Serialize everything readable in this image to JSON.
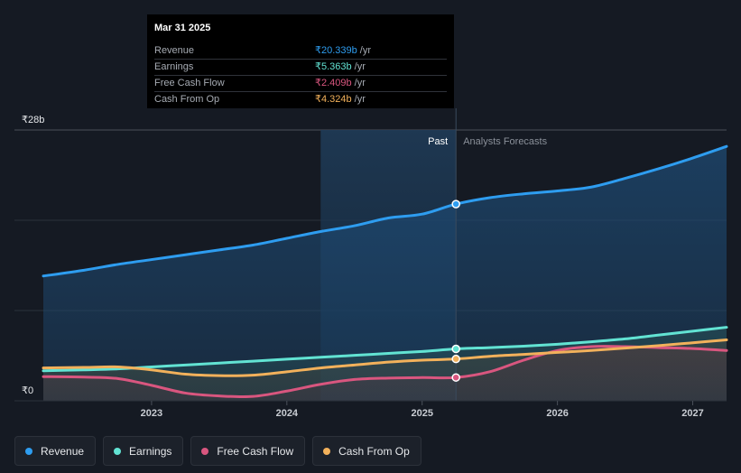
{
  "tooltip": {
    "date": "Mar 31 2025",
    "rows": [
      {
        "label": "Revenue",
        "value": "₹20.339b",
        "unit": "/yr",
        "color": "#2e9df0"
      },
      {
        "label": "Earnings",
        "value": "₹5.363b",
        "unit": "/yr",
        "color": "#62e3d3"
      },
      {
        "label": "Free Cash Flow",
        "value": "₹2.409b",
        "unit": "/yr",
        "color": "#d9567f"
      },
      {
        "label": "Cash From Op",
        "value": "₹4.324b",
        "unit": "/yr",
        "color": "#f2b15b"
      }
    ]
  },
  "chart_data": {
    "type": "line",
    "title": "",
    "ylabel": "",
    "xlabel": "",
    "y_unit_labels": {
      "top": "₹28b",
      "bottom": "₹0"
    },
    "ylim": [
      0,
      28
    ],
    "xlim": [
      2022.2,
      2027.25
    ],
    "x_ticks": [
      2023,
      2024,
      2025,
      2026,
      2027
    ],
    "x_tick_labels": [
      "2023",
      "2024",
      "2025",
      "2026",
      "2027"
    ],
    "past_label": "Past",
    "forecast_label": "Analysts Forecasts",
    "divider_x": 2025.25,
    "highlight_start_x": 2024.25,
    "series": [
      {
        "name": "Revenue",
        "color": "#2e9df0",
        "points": [
          [
            2022.2,
            12.9
          ],
          [
            2022.5,
            13.5
          ],
          [
            2022.75,
            14.1
          ],
          [
            2023.0,
            14.6
          ],
          [
            2023.25,
            15.1
          ],
          [
            2023.5,
            15.6
          ],
          [
            2023.75,
            16.1
          ],
          [
            2024.0,
            16.8
          ],
          [
            2024.25,
            17.5
          ],
          [
            2024.5,
            18.1
          ],
          [
            2024.75,
            18.9
          ],
          [
            2025.0,
            19.3
          ],
          [
            2025.25,
            20.339
          ],
          [
            2025.5,
            21.0
          ],
          [
            2025.75,
            21.4
          ],
          [
            2026.0,
            21.7
          ],
          [
            2026.25,
            22.1
          ],
          [
            2026.5,
            23.0
          ],
          [
            2026.75,
            24.0
          ],
          [
            2027.0,
            25.1
          ],
          [
            2027.25,
            26.3
          ]
        ]
      },
      {
        "name": "Earnings",
        "color": "#62e3d3",
        "points": [
          [
            2022.2,
            3.1
          ],
          [
            2022.5,
            3.2
          ],
          [
            2022.75,
            3.3
          ],
          [
            2023.0,
            3.5
          ],
          [
            2023.25,
            3.7
          ],
          [
            2023.5,
            3.9
          ],
          [
            2023.75,
            4.1
          ],
          [
            2024.0,
            4.3
          ],
          [
            2024.25,
            4.5
          ],
          [
            2024.5,
            4.7
          ],
          [
            2024.75,
            4.9
          ],
          [
            2025.0,
            5.1
          ],
          [
            2025.25,
            5.363
          ],
          [
            2025.5,
            5.5
          ],
          [
            2025.75,
            5.65
          ],
          [
            2026.0,
            5.85
          ],
          [
            2026.25,
            6.1
          ],
          [
            2026.5,
            6.4
          ],
          [
            2026.75,
            6.8
          ],
          [
            2027.0,
            7.2
          ],
          [
            2027.25,
            7.6
          ]
        ]
      },
      {
        "name": "Free Cash Flow",
        "color": "#d9567f",
        "points": [
          [
            2022.2,
            2.5
          ],
          [
            2022.5,
            2.45
          ],
          [
            2022.75,
            2.3
          ],
          [
            2023.0,
            1.6
          ],
          [
            2023.25,
            0.8
          ],
          [
            2023.5,
            0.5
          ],
          [
            2023.75,
            0.45
          ],
          [
            2024.0,
            1.0
          ],
          [
            2024.25,
            1.7
          ],
          [
            2024.5,
            2.2
          ],
          [
            2024.75,
            2.35
          ],
          [
            2025.0,
            2.4
          ],
          [
            2025.25,
            2.409
          ],
          [
            2025.5,
            3.0
          ],
          [
            2025.75,
            4.2
          ],
          [
            2026.0,
            5.2
          ],
          [
            2026.25,
            5.6
          ],
          [
            2026.5,
            5.6
          ],
          [
            2026.75,
            5.5
          ],
          [
            2027.0,
            5.4
          ],
          [
            2027.25,
            5.2
          ]
        ]
      },
      {
        "name": "Cash From Op",
        "color": "#f2b15b",
        "points": [
          [
            2022.2,
            3.4
          ],
          [
            2022.5,
            3.45
          ],
          [
            2022.75,
            3.5
          ],
          [
            2023.0,
            3.2
          ],
          [
            2023.25,
            2.75
          ],
          [
            2023.5,
            2.6
          ],
          [
            2023.75,
            2.65
          ],
          [
            2024.0,
            3.0
          ],
          [
            2024.25,
            3.4
          ],
          [
            2024.5,
            3.7
          ],
          [
            2024.75,
            4.0
          ],
          [
            2025.0,
            4.2
          ],
          [
            2025.25,
            4.324
          ],
          [
            2025.5,
            4.6
          ],
          [
            2025.75,
            4.8
          ],
          [
            2026.0,
            5.0
          ],
          [
            2026.25,
            5.2
          ],
          [
            2026.5,
            5.45
          ],
          [
            2026.75,
            5.7
          ],
          [
            2027.0,
            6.0
          ],
          [
            2027.25,
            6.3
          ]
        ]
      }
    ]
  }
}
